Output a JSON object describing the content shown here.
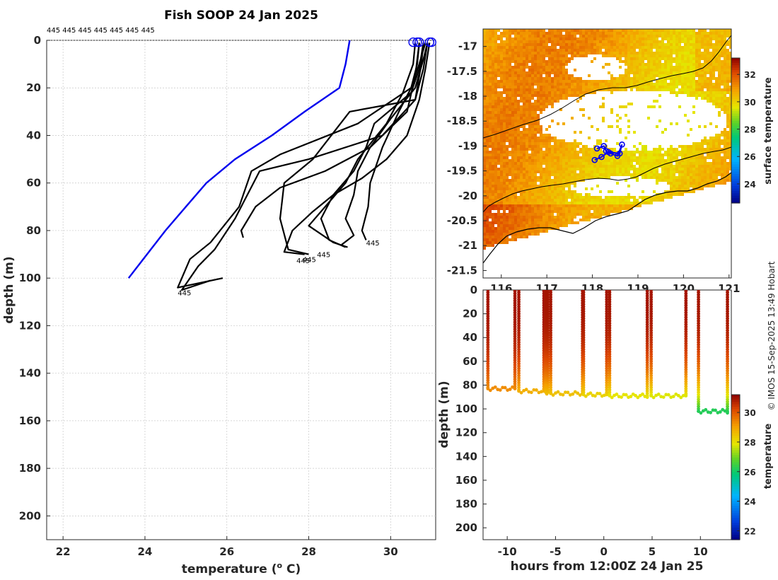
{
  "credit": "© IMOS 15-Sep-2025 13:49 Hobart",
  "chart_data": [
    {
      "id": "profile",
      "type": "line",
      "title": "Fish SOOP 24 Jan 2025",
      "xlabel": "temperature (o C)",
      "xlabel_main": "temperature (",
      "xlabel_sup": "o",
      "xlabel_end": " C)",
      "ylabel": "depth (m)",
      "xlim": [
        21.6,
        31.1
      ],
      "ylim": [
        210,
        0
      ],
      "xticks": [
        "22",
        "24",
        "26",
        "28",
        "30"
      ],
      "yticks": [
        "0",
        "20",
        "40",
        "60",
        "80",
        "100",
        "120",
        "140",
        "160",
        "180",
        "200"
      ],
      "top_labels": "445 445 445 445 445 445 445",
      "climatology": {
        "color": "#0000ee",
        "x": [
          29.0,
          28.9,
          28.75,
          27.9,
          27.1,
          26.2,
          25.5,
          25.0,
          24.5,
          24.05,
          23.6
        ],
        "y": [
          0,
          10,
          20,
          30,
          40,
          50,
          60,
          70,
          80,
          90,
          100
        ]
      },
      "surface_markers": [
        30.55,
        30.65,
        30.7,
        30.95,
        31.0
      ],
      "end_labels": [
        {
          "text": "445",
          "x": 29.4,
          "y": 85
        },
        {
          "text": "445",
          "x": 28.2,
          "y": 90
        },
        {
          "text": "445",
          "x": 27.85,
          "y": 92
        },
        {
          "text": "445",
          "x": 27.7,
          "y": 92.5
        },
        {
          "text": "445",
          "x": 24.8,
          "y": 106
        }
      ],
      "casts": [
        {
          "x": [
            30.7,
            30.65,
            30.5,
            30.2,
            29.8,
            29.5,
            29.45,
            29.3,
            29.4
          ],
          "y": [
            1,
            10,
            20,
            30,
            45,
            60,
            70,
            80,
            84
          ]
        },
        {
          "x": [
            30.8,
            30.7,
            30.5,
            29.6,
            29.4,
            29.1,
            28.6,
            28.3,
            28.5,
            28.9
          ],
          "y": [
            1,
            12,
            22,
            35,
            45,
            55,
            65,
            75,
            84,
            87
          ]
        },
        {
          "x": [
            30.6,
            30.55,
            30.3,
            29.9,
            29.2,
            28.9,
            28.5,
            28.0,
            28.6,
            28.95
          ],
          "y": [
            1,
            10,
            22,
            35,
            50,
            60,
            68,
            78,
            85,
            87
          ]
        },
        {
          "x": [
            30.9,
            30.8,
            30.6,
            30.0,
            29.5,
            29.2,
            29.1,
            28.9,
            29.1,
            28.8
          ],
          "y": [
            1,
            8,
            20,
            33,
            45,
            55,
            65,
            75,
            82,
            86
          ]
        },
        {
          "x": [
            30.8,
            30.75,
            30.6,
            29.0,
            28.1,
            27.4,
            27.3,
            27.5,
            28.0
          ],
          "y": [
            1,
            10,
            25,
            30,
            50,
            60,
            75,
            88,
            90
          ]
        },
        {
          "x": [
            30.95,
            30.85,
            30.7,
            30.4,
            29.9,
            29.3,
            28.6,
            28.1,
            27.6,
            27.4,
            27.9
          ],
          "y": [
            1,
            12,
            25,
            40,
            50,
            58,
            65,
            72,
            80,
            89,
            90
          ]
        },
        {
          "x": [
            30.7,
            30.6,
            30.4,
            29.5,
            28.4,
            27.3,
            26.7,
            26.35,
            26.4
          ],
          "y": [
            1,
            15,
            30,
            45,
            55,
            62,
            70,
            80,
            83
          ]
        },
        {
          "x": [
            30.85,
            30.7,
            30.5,
            29.2,
            27.3,
            26.6,
            26.3,
            25.6,
            25.1,
            24.8,
            25.9
          ],
          "y": [
            1,
            10,
            20,
            35,
            48,
            55,
            70,
            85,
            92,
            104,
            100
          ]
        },
        {
          "x": [
            30.9,
            30.8,
            30.6,
            29.8,
            28.0,
            26.8,
            26.2,
            25.7,
            25.3,
            24.9,
            25.6
          ],
          "y": [
            1,
            12,
            25,
            40,
            50,
            55,
            75,
            88,
            95,
            105,
            101
          ]
        }
      ]
    },
    {
      "id": "map",
      "type": "heatmap",
      "xlim": [
        115.6,
        121.05
      ],
      "ylim": [
        -21.65,
        -16.65
      ],
      "xticks": [
        "116",
        "117",
        "118",
        "119",
        "120",
        "121"
      ],
      "yticks": [
        "-17",
        "-17.5",
        "-18",
        "-18.5",
        "-19",
        "-19.5",
        "-20",
        "-20.5",
        "-21",
        "-21.5"
      ],
      "colorbar_label": "surface temperature",
      "colorbar_ticks": [
        "24",
        "26",
        "28",
        "30",
        "32"
      ],
      "colorbar_range": [
        22.6,
        33.2
      ],
      "track": {
        "color": "#0000ee",
        "lon": [
          118.1,
          118.25,
          118.3,
          118.4,
          118.55,
          118.65,
          118.6,
          118.35,
          118.2,
          118.05
        ],
        "lat": [
          -19.05,
          -19.0,
          -19.1,
          -19.15,
          -19.2,
          -18.97,
          -19.15,
          -19.12,
          -19.22,
          -19.28
        ]
      }
    },
    {
      "id": "timeseries",
      "type": "scatter",
      "xlabel": "hours from 12:00Z 24 Jan 25",
      "ylabel": "depth (m)",
      "xlim": [
        -12.5,
        13.2
      ],
      "ylim": [
        210,
        0
      ],
      "xticks": [
        "-10",
        "-5",
        "0",
        "5",
        "10"
      ],
      "yticks": [
        "0",
        "20",
        "40",
        "60",
        "80",
        "100",
        "120",
        "140",
        "160",
        "180",
        "200"
      ],
      "colorbar_label": "temperature",
      "colorbar_ticks": [
        "22",
        "24",
        "26",
        "28",
        "30"
      ],
      "colorbar_range": [
        21.4,
        31.2
      ],
      "casts": [
        {
          "t": [
            -12.0,
            -9.2
          ],
          "bottom": 83,
          "bottom_temp": 29.3
        },
        {
          "t": [
            -8.8,
            -6.2
          ],
          "bottom": 85,
          "bottom_temp": 28.8
        },
        {
          "t": [
            -6.0,
            -5.8
          ],
          "bottom": 86,
          "bottom_temp": 28.6
        },
        {
          "t": [
            -5.5,
            -2.2
          ],
          "bottom": 87,
          "bottom_temp": 28.5
        },
        {
          "t": [
            -2.1,
            0.3
          ],
          "bottom": 88,
          "bottom_temp": 28.2
        },
        {
          "t": [
            0.6,
            4.5
          ],
          "bottom": 89,
          "bottom_temp": 27.9
        },
        {
          "t": [
            4.9,
            8.5
          ],
          "bottom": 89,
          "bottom_temp": 27.8
        },
        {
          "t": [
            9.8,
            12.8
          ],
          "bottom": 102,
          "bottom_temp": 26.2
        }
      ]
    }
  ]
}
